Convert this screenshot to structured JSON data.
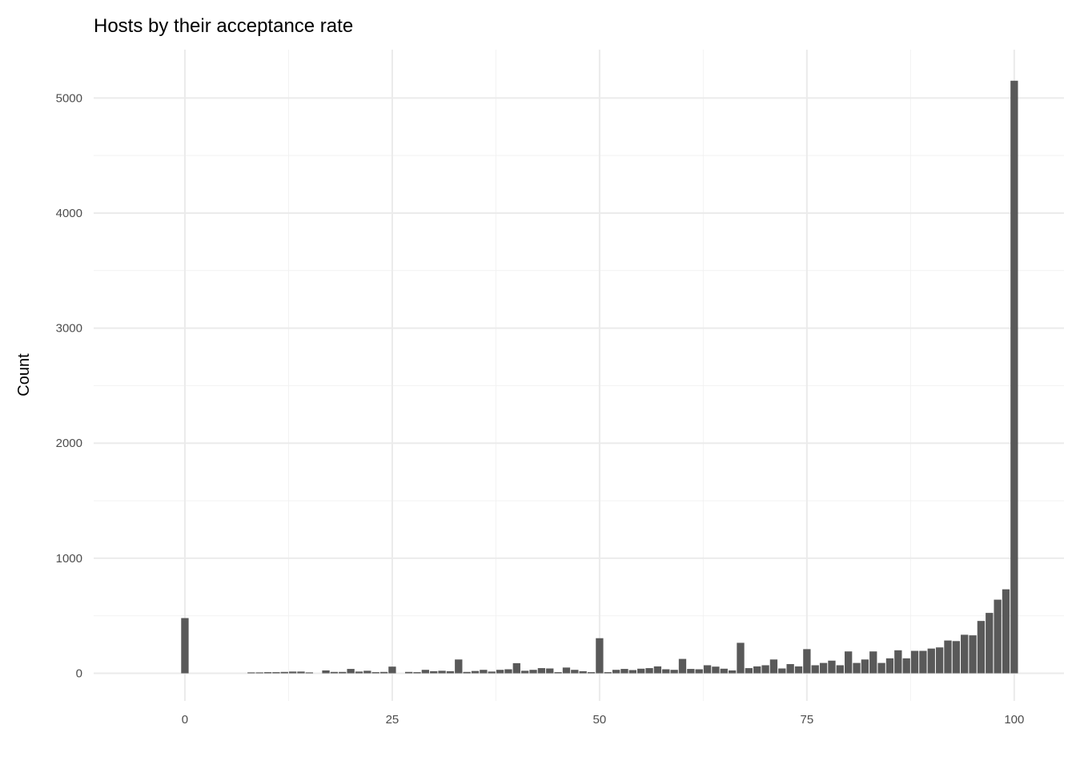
{
  "chart_data": {
    "type": "bar",
    "title": "Hosts by their acceptance rate",
    "xlabel": "",
    "ylabel": "Count",
    "xlim": [
      -11,
      106
    ],
    "ylim": [
      -240,
      5420
    ],
    "x_ticks": [
      0,
      25,
      50,
      75,
      100
    ],
    "y_ticks": [
      0,
      1000,
      2000,
      3000,
      4000,
      5000
    ],
    "grid": true,
    "bar_color": "#595959",
    "x": [
      0,
      8,
      9,
      10,
      11,
      12,
      13,
      14,
      15,
      17,
      18,
      19,
      20,
      21,
      22,
      23,
      24,
      25,
      27,
      28,
      29,
      30,
      31,
      32,
      33,
      34,
      35,
      36,
      37,
      38,
      39,
      40,
      41,
      42,
      43,
      44,
      45,
      46,
      47,
      48,
      49,
      50,
      51,
      52,
      53,
      54,
      55,
      56,
      57,
      58,
      59,
      60,
      61,
      62,
      63,
      64,
      65,
      66,
      67,
      68,
      69,
      70,
      71,
      72,
      73,
      74,
      75,
      76,
      77,
      78,
      79,
      80,
      81,
      82,
      83,
      84,
      85,
      86,
      87,
      88,
      89,
      90,
      91,
      92,
      93,
      94,
      95,
      96,
      97,
      98,
      99,
      100
    ],
    "values": [
      480,
      8,
      8,
      10,
      10,
      12,
      15,
      15,
      8,
      25,
      12,
      12,
      38,
      15,
      22,
      10,
      12,
      58,
      12,
      10,
      30,
      18,
      22,
      18,
      120,
      12,
      20,
      30,
      15,
      30,
      35,
      88,
      22,
      30,
      45,
      42,
      10,
      50,
      30,
      18,
      10,
      305,
      10,
      30,
      38,
      28,
      40,
      45,
      60,
      35,
      30,
      125,
      38,
      35,
      70,
      58,
      40,
      25,
      265,
      45,
      60,
      70,
      120,
      42,
      80,
      60,
      210,
      70,
      90,
      110,
      70,
      190,
      90,
      120,
      190,
      90,
      130,
      200,
      130,
      195,
      195,
      215,
      225,
      285,
      280,
      335,
      330,
      455,
      525,
      640,
      730,
      5150
    ]
  }
}
